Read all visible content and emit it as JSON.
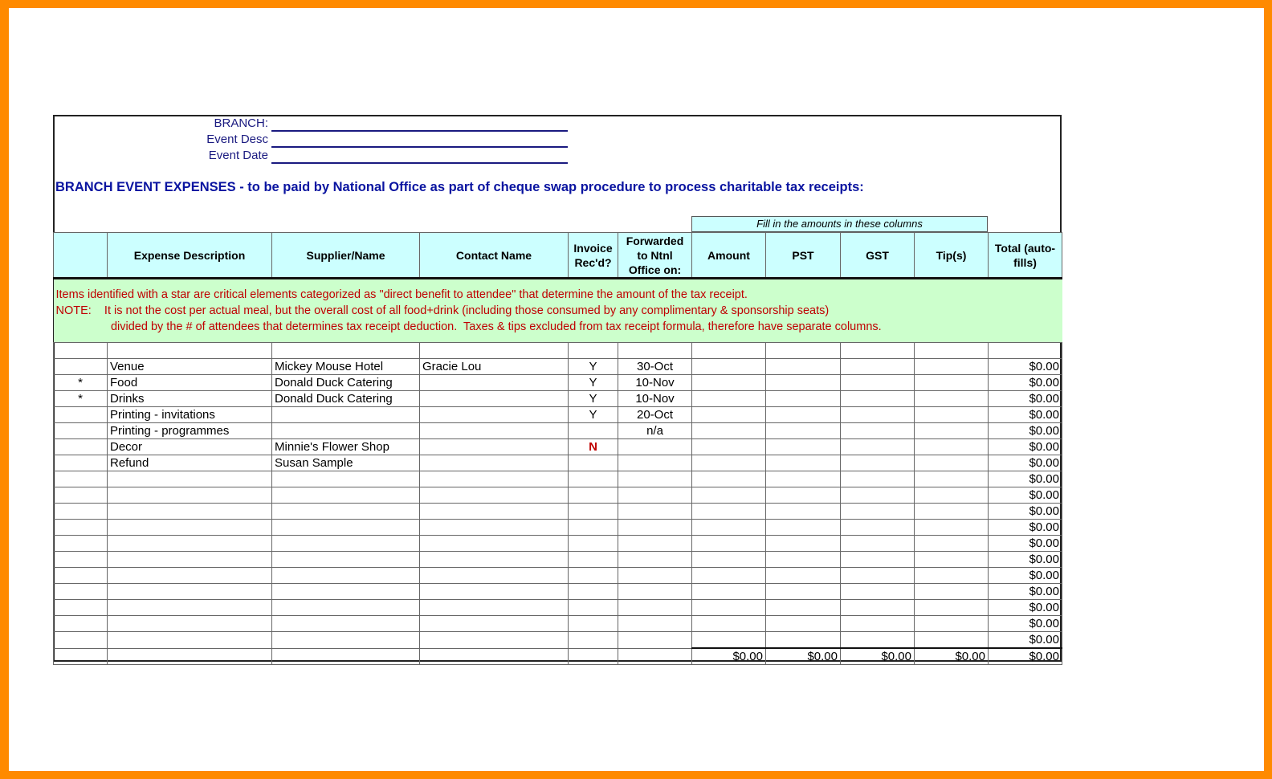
{
  "header": {
    "branch_label": "BRANCH:",
    "desc_label": "Event Desc",
    "date_label": "Event Date",
    "title": "BRANCH EVENT EXPENSES - to be paid by National Office as part of cheque swap procedure to process charitable tax receipts:",
    "fill_note": "Fill in the amounts in these columns"
  },
  "columns": [
    "",
    "Expense Description",
    "Supplier/Name",
    "Contact Name",
    "Invoice Rec'd?",
    "Forwarded to Ntnl Office on:",
    "Amount",
    "PST",
    "GST",
    "Tip(s)",
    "Total (auto-fills)"
  ],
  "note": "Items identified with a star are critical elements categorized as \"direct benefit to attendee\" that determine the amount of the tax receipt.\nNOTE:    It is not the cost per actual meal, but the overall cost of all food+drink (including those consumed by any complimentary & sponsorship seats)\n                 divided by the # of attendees that determines tax receipt deduction.  Taxes & tips excluded from tax receipt formula, therefore have separate columns.",
  "rows": [
    [
      "",
      "Venue",
      "Mickey Mouse Hotel",
      "Gracie Lou",
      "Y",
      "30-Oct",
      "$0.00"
    ],
    [
      "*",
      "Food",
      "Donald Duck Catering",
      "",
      "Y",
      "10-Nov",
      "$0.00"
    ],
    [
      "*",
      "Drinks",
      "Donald Duck Catering",
      "",
      "Y",
      "10-Nov",
      "$0.00"
    ],
    [
      "",
      "Printing - invitations",
      "",
      "",
      "Y",
      "20-Oct",
      "$0.00"
    ],
    [
      "",
      "Printing - programmes",
      "",
      "",
      "",
      "n/a",
      "$0.00"
    ],
    [
      "",
      "Decor",
      "Minnie's Flower Shop",
      "",
      "N",
      "",
      "$0.00"
    ],
    [
      "",
      "Refund",
      "Susan Sample",
      "",
      "",
      "",
      "$0.00"
    ],
    [
      "",
      "",
      "",
      "",
      "",
      "",
      "$0.00"
    ],
    [
      "",
      "",
      "",
      "",
      "",
      "",
      "$0.00"
    ],
    [
      "",
      "",
      "",
      "",
      "",
      "",
      "$0.00"
    ],
    [
      "",
      "",
      "",
      "",
      "",
      "",
      "$0.00"
    ],
    [
      "",
      "",
      "",
      "",
      "",
      "",
      "$0.00"
    ],
    [
      "",
      "",
      "",
      "",
      "",
      "",
      "$0.00"
    ],
    [
      "",
      "",
      "",
      "",
      "",
      "",
      "$0.00"
    ],
    [
      "",
      "",
      "",
      "",
      "",
      "",
      "$0.00"
    ],
    [
      "",
      "",
      "",
      "",
      "",
      "",
      "$0.00"
    ],
    [
      "",
      "",
      "",
      "",
      "",
      "",
      "$0.00"
    ],
    [
      "",
      "",
      "",
      "",
      "",
      "",
      "$0.00"
    ]
  ],
  "totals": {
    "amount": "$0.00",
    "pst": "$0.00",
    "gst": "$0.00",
    "tips": "$0.00",
    "total": "$0.00"
  },
  "colors": {
    "border": "#ff8a00",
    "header_bg": "#ccffff",
    "note_bg": "#ccffcc",
    "note_text": "#c00000",
    "title": "#0a14a0"
  }
}
